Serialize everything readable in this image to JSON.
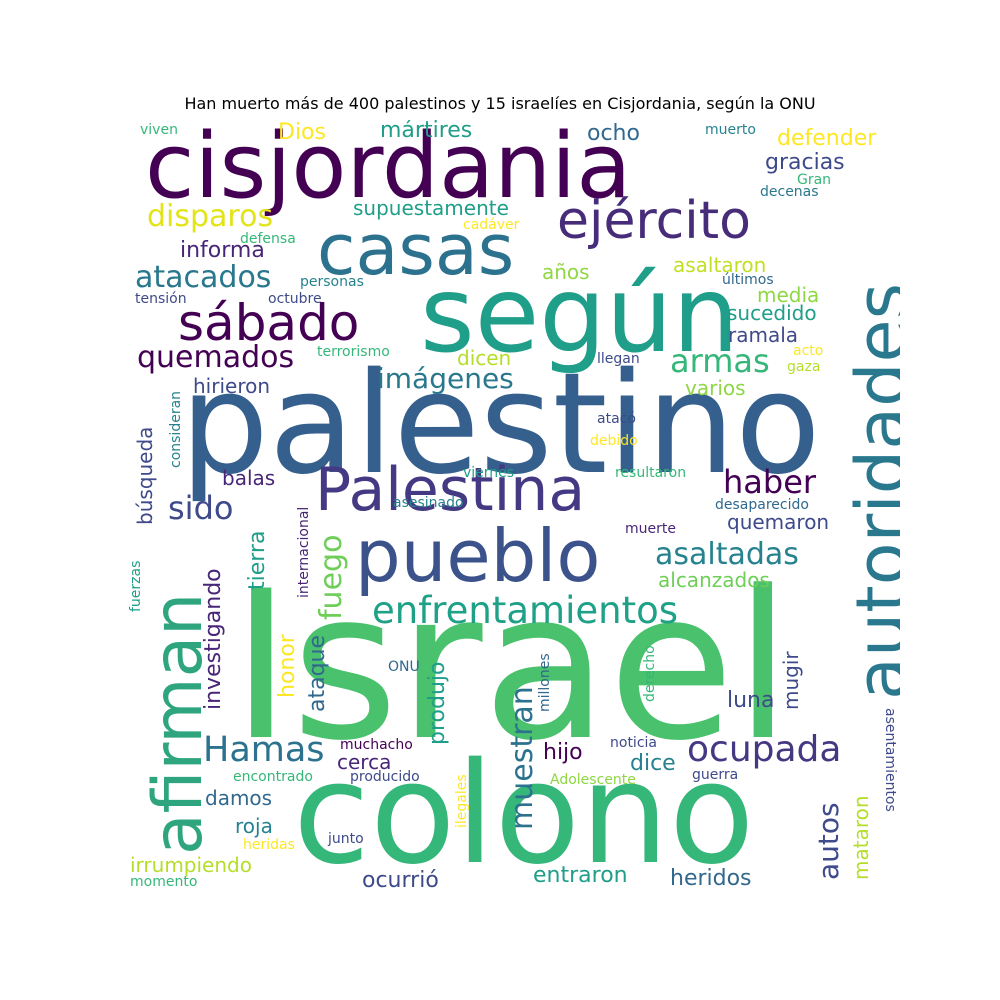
{
  "title": "Han muerto más de 400 palestinos y 15 israelíes en Cisjordania, según la ONU",
  "colors": {
    "c0": "#440154",
    "c1": "#482677",
    "c2": "#3e4a89",
    "c3": "#31688e",
    "c4": "#26828e",
    "c5": "#1f9e89",
    "c6": "#35b779",
    "c7": "#6ece58",
    "c8": "#b5de2b",
    "c9": "#fde725"
  },
  "words": {
    "israel": "Israel",
    "colono": "colono",
    "palestino": "palestino",
    "segun": "según",
    "cisjordania": "cisjordania",
    "autoridades": "autoridades",
    "afirman": "afirman",
    "palestina": "Palestina",
    "pueblo": "pueblo",
    "casas": "casas",
    "ejercito": "ejército",
    "sabado": "sábado",
    "enfrentamientos": "enfrentamientos",
    "ocupada": "ocupada",
    "hamas": "Hamas",
    "muestran": "muestran",
    "autos": "autos",
    "disparos": "disparos",
    "atacados": "atacados",
    "quemados": "quemados",
    "imagenes": "imágenes",
    "armas": "armas",
    "haber": "haber",
    "asaltadas": "asaltadas",
    "sido": "sido",
    "fuego": "fuego",
    "martires": "mártires",
    "dios": "Dios",
    "viven": "viven",
    "ocho": "ocho",
    "muerto": "muerto",
    "defender": "defender",
    "gracias": "gracias",
    "gran": "Gran",
    "decenas": "decenas",
    "supuestamente": "supuestamente",
    "cadaver": "cadáver",
    "defensa": "defensa",
    "informa": "informa",
    "asaltaron": "asaltaron",
    "anos": "años",
    "ultimos": "últimos",
    "media": "media",
    "personas": "personas",
    "tension": "tensión",
    "octubre": "octubre",
    "sucedido": "sucedido",
    "ramala": "ramala",
    "terrorismo": "terrorismo",
    "acto": "acto",
    "dicen": "dicen",
    "llegan": "llegan",
    "gaza": "gaza",
    "varios": "varios",
    "hirieron": "hirieron",
    "consideran": "consideran",
    "busqueda": "búsqueda",
    "ataco": "atacó",
    "debido": "debido",
    "viernes": "viernes",
    "resultaron": "resultaron",
    "balas": "balas",
    "internacional": "internacional",
    "investigando": "investigando",
    "tierra": "tierra",
    "desaparecido": "desaparecido",
    "quemaron": "quemaron",
    "asesinado": "asesinado",
    "muerte": "muerte",
    "alcanzados": "alcanzados",
    "fuerzas": "fuerzas",
    "ataque": "ataque",
    "honor": "honor",
    "produjo": "produjo",
    "millones": "millones",
    "derecho": "derecho",
    "onu": "ONU",
    "mugir": "mugir",
    "luna": "luna",
    "hijo": "hijo",
    "dice": "dice",
    "noticia": "noticia",
    "muchacho": "muchacho",
    "cerca": "cerca",
    "encontrado": "encontrado",
    "producido": "producido",
    "ilegales": "ilegales",
    "adolescente": "Adolescente",
    "guerra": "guerra",
    "mataron": "mataron",
    "asentamientos": "asentamientos",
    "damos": "damos",
    "roja": "roja",
    "junto": "junto",
    "heridas": "heridas",
    "irrumpiendo": "irrumpiendo",
    "momento": "momento",
    "ocurrio": "ocurrió",
    "entraron": "entraron",
    "heridos": "heridos"
  }
}
